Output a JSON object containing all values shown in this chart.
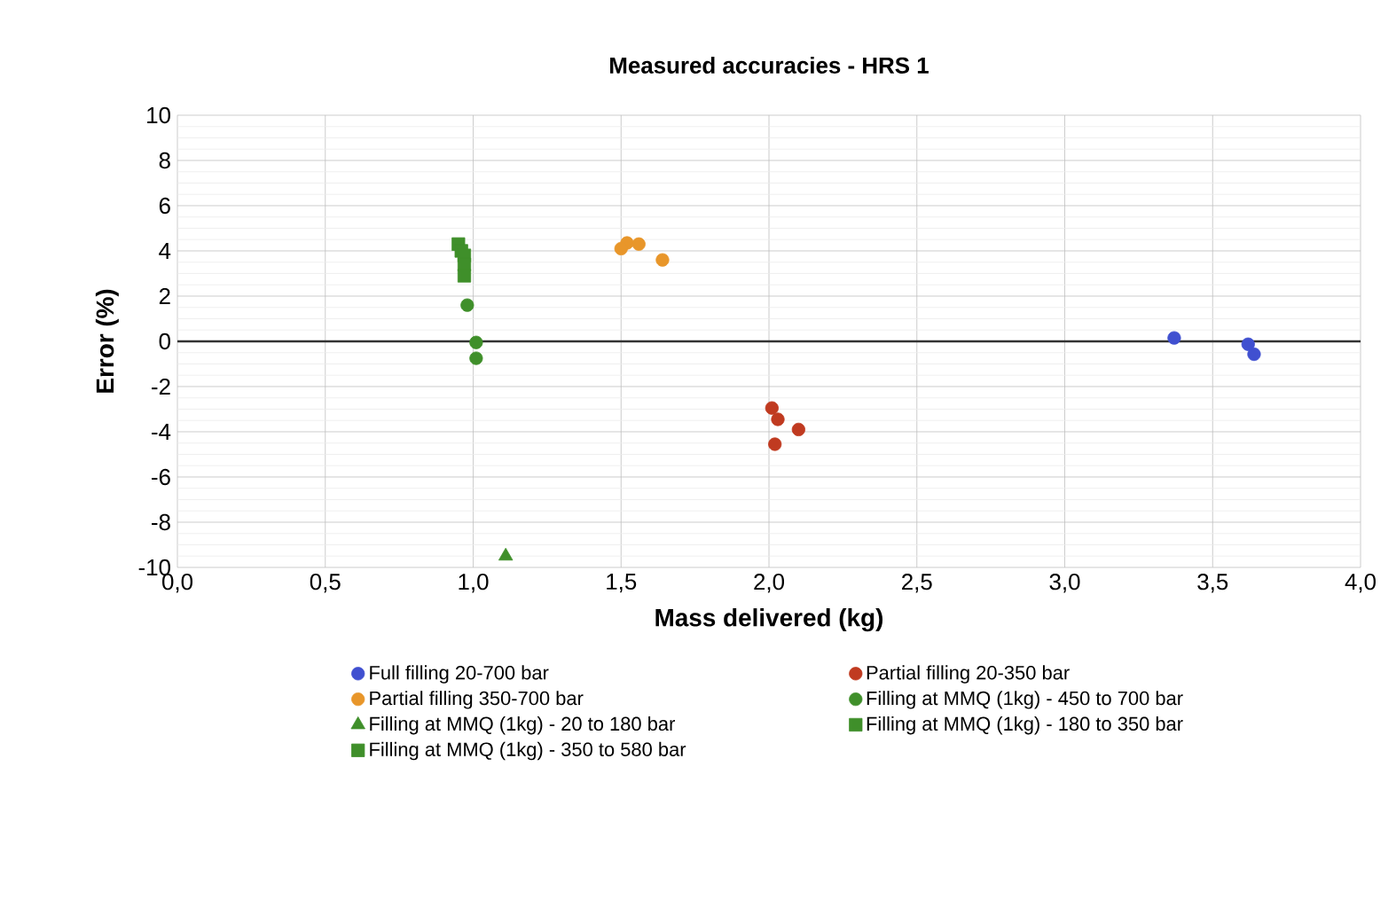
{
  "chart_data": {
    "type": "scatter",
    "title": "Measured accuracies - HRS 1",
    "xlabel": "Mass delivered (kg)",
    "ylabel": "Error (%)",
    "xlim": [
      0,
      4
    ],
    "ylim": [
      -10,
      10
    ],
    "xticks": [
      {
        "value": 0,
        "label": "0,0"
      },
      {
        "value": 0.5,
        "label": "0,5"
      },
      {
        "value": 1,
        "label": "1,0"
      },
      {
        "value": 1.5,
        "label": "1,5"
      },
      {
        "value": 2,
        "label": "2,0"
      },
      {
        "value": 2.5,
        "label": "2,5"
      },
      {
        "value": 3,
        "label": "3,0"
      },
      {
        "value": 3.5,
        "label": "3,5"
      },
      {
        "value": 4,
        "label": "4,0"
      }
    ],
    "yticks": [
      -10,
      -8,
      -6,
      -4,
      -2,
      0,
      2,
      4,
      6,
      8,
      10
    ],
    "grid": true,
    "legend": "bottom",
    "ref_lines": [
      {
        "axis": "y",
        "value": 0,
        "color": "#333333"
      }
    ],
    "series": [
      {
        "name": "Full filling 20-700 bar",
        "color": "#4050d0",
        "marker": "circle",
        "x": [
          3.37,
          3.62,
          3.64
        ],
        "values": [
          0.15,
          -0.13,
          -0.57
        ]
      },
      {
        "name": "Partial filling 20-350 bar",
        "color": "#c03a20",
        "marker": "circle",
        "x": [
          2.01,
          2.03,
          2.1,
          2.02
        ],
        "values": [
          -2.95,
          -3.45,
          -3.9,
          -4.55
        ]
      },
      {
        "name": "Partial filling 350-700 bar",
        "color": "#e8962a",
        "marker": "circle",
        "x": [
          1.52,
          1.56,
          1.5,
          1.64
        ],
        "values": [
          4.35,
          4.3,
          4.1,
          3.6
        ]
      },
      {
        "name": "Filling at MMQ (1kg) - 450 to 700 bar",
        "color": "#3f8f2a",
        "marker": "circle",
        "x": [
          0.98,
          1.01,
          1.01
        ],
        "values": [
          1.6,
          -0.05,
          -0.75
        ]
      },
      {
        "name": "Filling at MMQ (1kg) - 20 to 180 bar",
        "color": "#3f8f2a",
        "marker": "triangle",
        "x": [
          1.11
        ],
        "values": [
          -9.5
        ]
      },
      {
        "name": "Filling at MMQ (1kg) - 180 to 350 bar",
        "color": "#3f8f2a",
        "marker": "square",
        "x": [
          0.95,
          0.96,
          0.97
        ],
        "values": [
          4.3,
          4.0,
          3.8
        ]
      },
      {
        "name": "Filling at MMQ (1kg) - 350 to 580 bar",
        "color": "#3f8f2a",
        "marker": "square",
        "x": [
          0.97,
          0.97
        ],
        "values": [
          3.4,
          2.9
        ]
      }
    ]
  }
}
